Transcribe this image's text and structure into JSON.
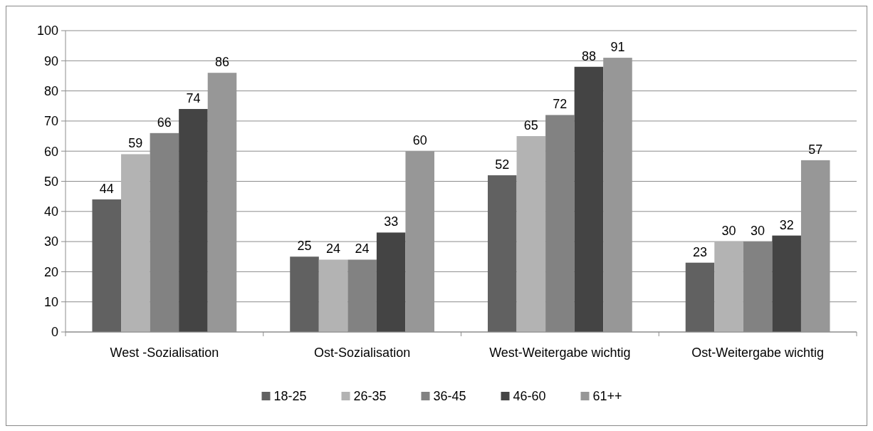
{
  "chart_data": {
    "type": "bar",
    "categories": [
      "West -Sozialisation",
      "Ost-Sozialisation",
      "West-Weitergabe wichtig",
      "Ost-Weitergabe wichtig"
    ],
    "series": [
      {
        "name": "18-25",
        "color": "#616161",
        "values": [
          44,
          25,
          52,
          23
        ]
      },
      {
        "name": "26-35",
        "color": "#b3b3b3",
        "values": [
          59,
          24,
          65,
          30
        ]
      },
      {
        "name": "36-45",
        "color": "#828282",
        "values": [
          66,
          24,
          72,
          30
        ]
      },
      {
        "name": "46-60",
        "color": "#444444",
        "values": [
          74,
          33,
          88,
          32
        ]
      },
      {
        "name": "61++",
        "color": "#979797",
        "values": [
          86,
          60,
          91,
          57
        ]
      }
    ],
    "ylim": [
      0,
      100
    ],
    "yticks": [
      0,
      10,
      20,
      30,
      40,
      50,
      60,
      70,
      80,
      90,
      100
    ],
    "grid": "y",
    "legend": "bottom",
    "data_labels": true
  }
}
